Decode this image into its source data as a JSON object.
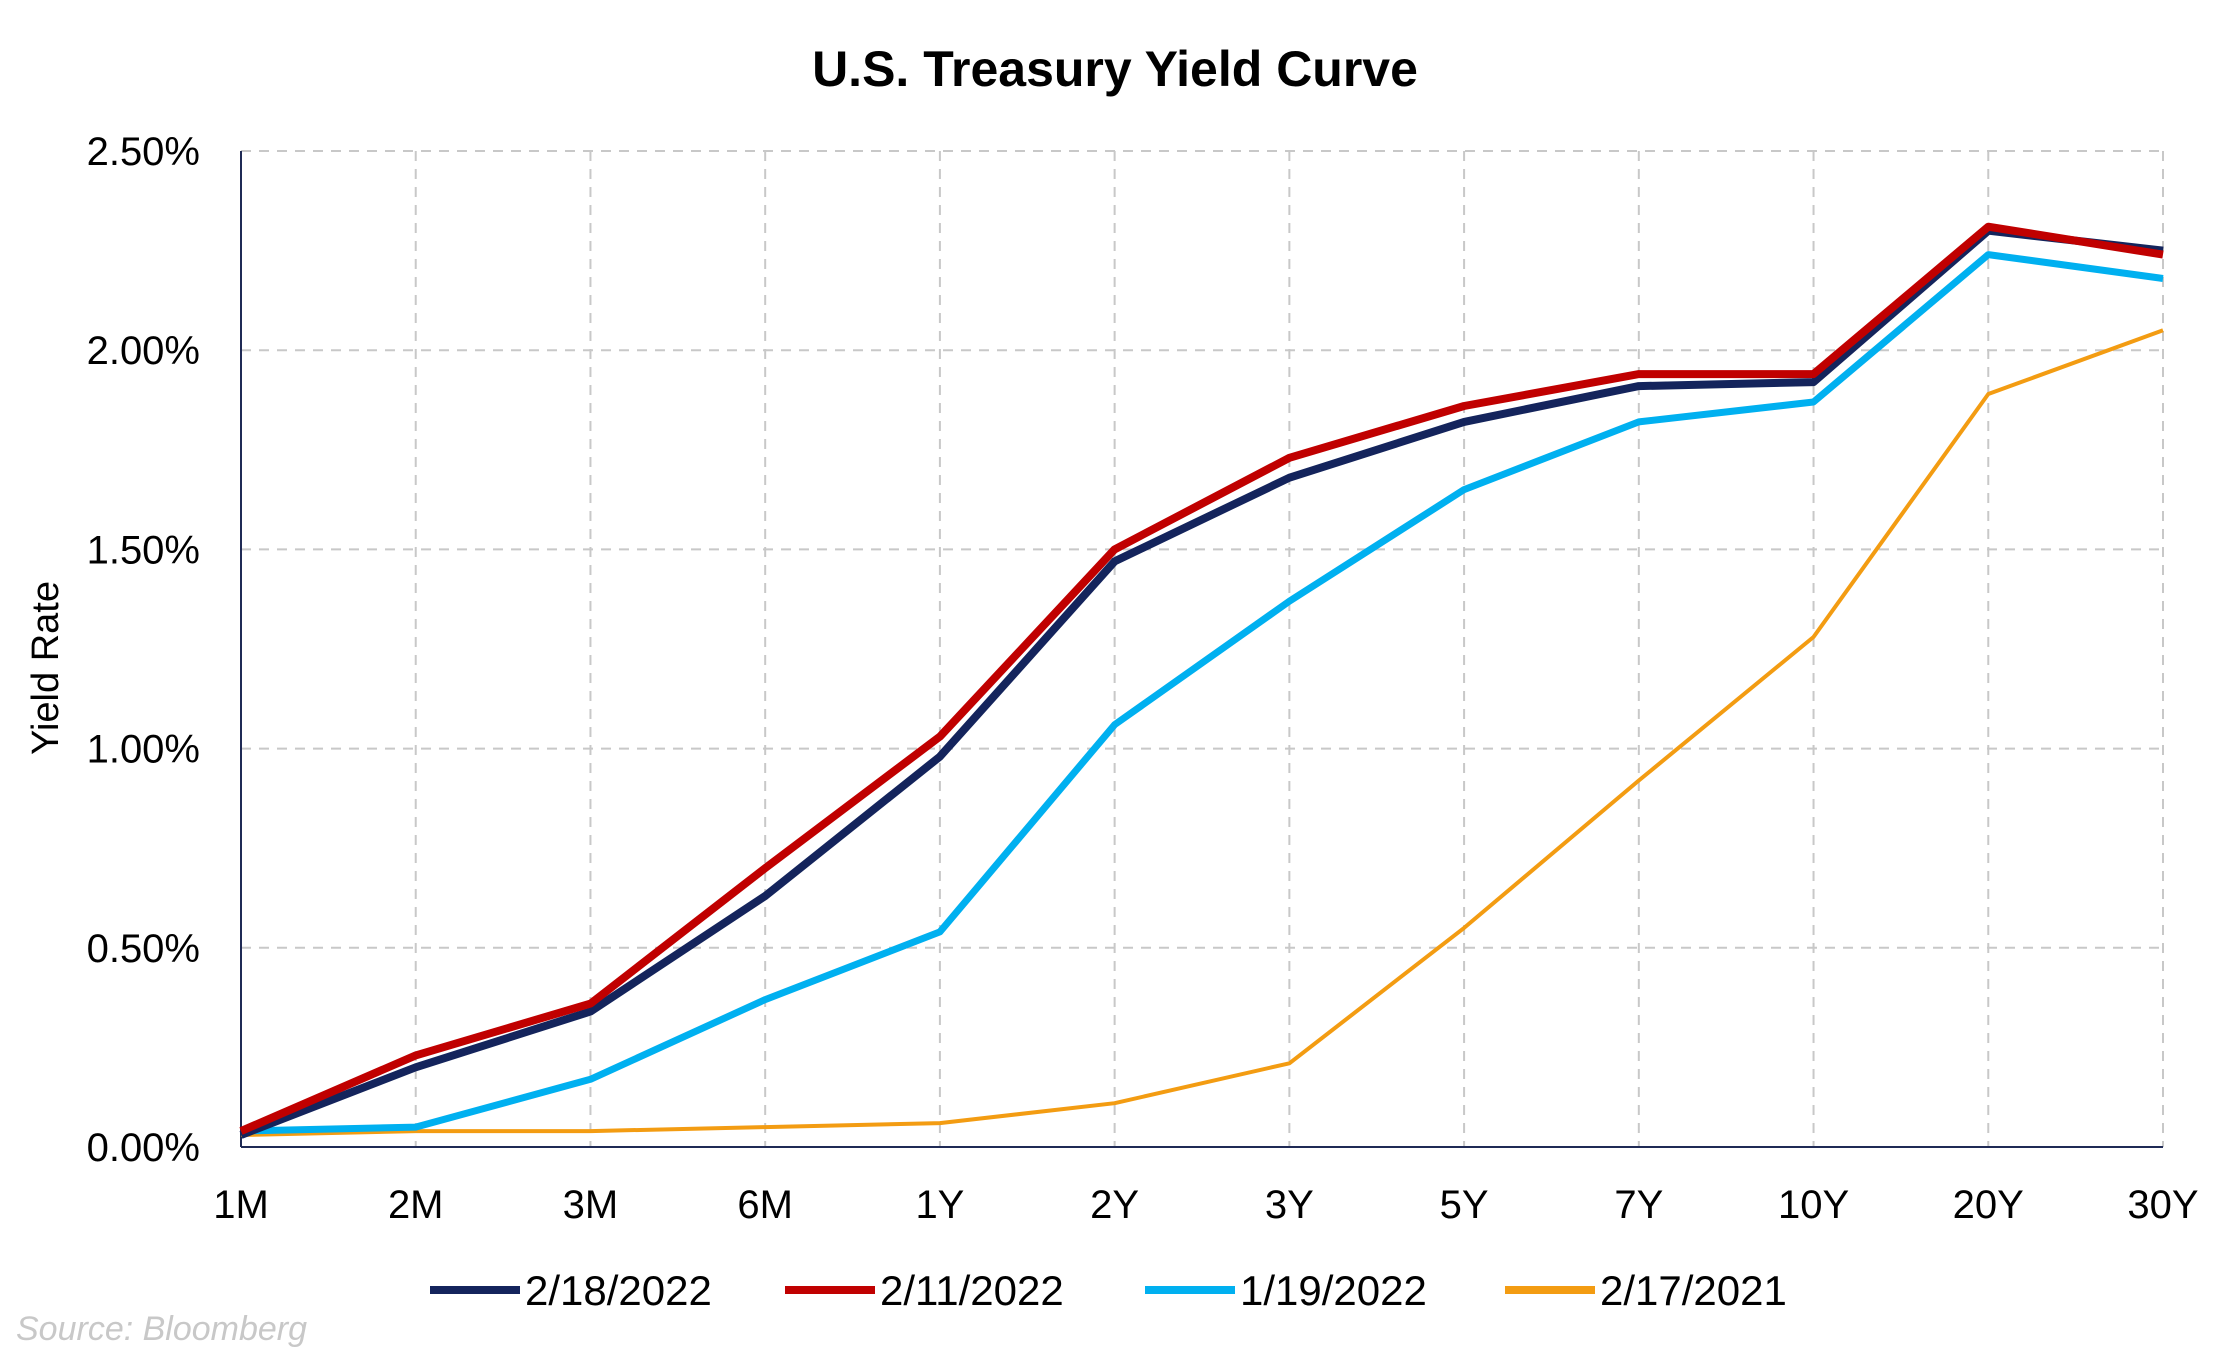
{
  "chart_data": {
    "type": "line",
    "title": "U.S. Treasury Yield Curve",
    "xlabel": "",
    "ylabel": "Yield Rate",
    "categories": [
      "1M",
      "2M",
      "3M",
      "6M",
      "1Y",
      "2Y",
      "3Y",
      "5Y",
      "7Y",
      "10Y",
      "20Y",
      "30Y"
    ],
    "ylim": [
      0,
      2.5
    ],
    "yticks": [
      "0.00%",
      "0.50%",
      "1.00%",
      "1.50%",
      "2.00%",
      "2.50%"
    ],
    "grid": true,
    "legend_position": "bottom",
    "series": [
      {
        "name": "2/18/2022",
        "color": "#14245c",
        "values": [
          0.03,
          0.2,
          0.34,
          0.63,
          0.98,
          1.47,
          1.68,
          1.82,
          1.91,
          1.92,
          2.3,
          2.25
        ]
      },
      {
        "name": "2/11/2022",
        "color": "#c00000",
        "values": [
          0.04,
          0.23,
          0.36,
          0.7,
          1.03,
          1.5,
          1.73,
          1.86,
          1.94,
          1.94,
          2.31,
          2.24
        ]
      },
      {
        "name": "1/19/2022",
        "color": "#00b0f0",
        "values": [
          0.04,
          0.05,
          0.17,
          0.37,
          0.54,
          1.06,
          1.37,
          1.65,
          1.82,
          1.87,
          2.24,
          2.18
        ]
      },
      {
        "name": "2/17/2021",
        "color": "#f39c12",
        "values": [
          0.03,
          0.04,
          0.04,
          0.05,
          0.06,
          0.11,
          0.21,
          0.55,
          0.92,
          1.28,
          1.89,
          2.05
        ]
      }
    ]
  },
  "source_note": "Source: Bloomberg"
}
